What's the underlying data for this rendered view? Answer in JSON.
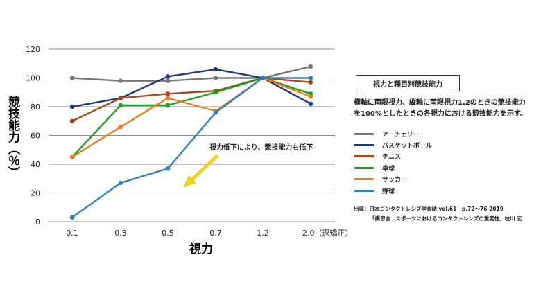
{
  "chart_data": {
    "type": "line",
    "title": "視力と種目別競技能力",
    "xlabel": "視力",
    "ylabel": "競技能力（％）",
    "categories": [
      "0.1",
      "0.3",
      "0.5",
      "0.7",
      "1.2",
      "2.0（過矯正）"
    ],
    "ylim": [
      0,
      120
    ],
    "yticks": [
      0,
      20,
      40,
      60,
      80,
      100,
      120
    ],
    "grid": true,
    "legend_position": "right",
    "series": [
      {
        "name": "アーチェリー",
        "color": "#777777",
        "values": [
          100,
          98,
          98,
          100,
          100,
          108
        ]
      },
      {
        "name": "バスケットボール",
        "color": "#1f3a7a",
        "values": [
          80,
          86,
          101,
          106,
          100,
          82
        ]
      },
      {
        "name": "テニス",
        "color": "#a5481e",
        "values": [
          70,
          86,
          89,
          91,
          100,
          97
        ]
      },
      {
        "name": "卓球",
        "color": "#1e9e1e",
        "values": [
          45,
          81,
          81,
          90,
          100,
          89
        ]
      },
      {
        "name": "サッカー",
        "color": "#ef7d22",
        "values": [
          45,
          66,
          86,
          77,
          100,
          87
        ]
      },
      {
        "name": "野球",
        "color": "#2f80b8",
        "values": [
          3,
          27,
          37,
          76,
          100,
          100
        ]
      }
    ],
    "annotation": "視力低下により、競技能力も低下"
  },
  "legend_title": "視力と種目別競技能力",
  "description": "横軸に両眼視力、縦軸に両眼視力1.2のときの競技能力を100%としたときの各視力における競技能力を示す。",
  "source": {
    "line1": "出典：日本コンタクトレンズ学会誌 vol.61　p.72～76 2019",
    "line2": "「講習会　スポーツにおけるコンタクトレンズの重要性」枝川 宏"
  },
  "arrow_color": "#f0d020"
}
